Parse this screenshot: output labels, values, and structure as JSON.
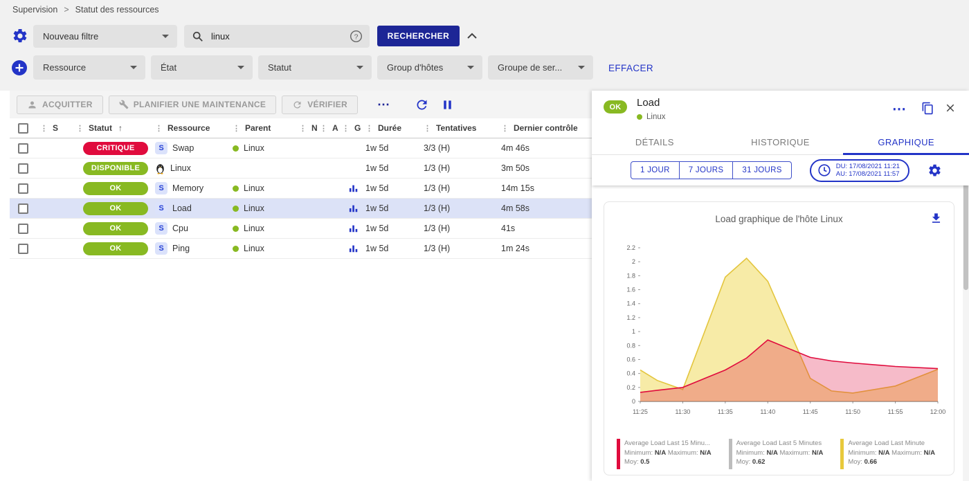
{
  "colors": {
    "accent": "#2334c7",
    "brand_dark": "#1d2696",
    "ok_green": "#88b922",
    "critical_red": "#e00b3d",
    "selected_row": "#dce2f7"
  },
  "breadcrumb": {
    "items": [
      "Supervision",
      "Statut des ressources"
    ],
    "separator": ">"
  },
  "filter_bar": {
    "saved_filter": "Nouveau filtre",
    "search_value": "linux",
    "search_button": "RECHERCHER",
    "criteria": [
      "Ressource",
      "État",
      "Statut",
      "Group d'hôtes",
      "Groupe de ser..."
    ],
    "clear_label": "EFFACER"
  },
  "toolbar": {
    "acknowledge": "ACQUITTER",
    "maintenance": "PLANIFIER UNE MAINTENANCE",
    "check": "VÉRIFIER",
    "more": "⋯"
  },
  "table": {
    "headers": [
      {
        "label": "S"
      },
      {
        "label": "Statut",
        "sorted": "asc"
      },
      {
        "label": "Ressource"
      },
      {
        "label": "Parent"
      },
      {
        "label": "N"
      },
      {
        "label": "A"
      },
      {
        "label": "G"
      },
      {
        "label": "Durée"
      },
      {
        "label": "Tentatives"
      },
      {
        "label": "Dernier contrôle"
      }
    ],
    "rows": [
      {
        "status": "CRITIQUE",
        "status_color": "#e00b3d",
        "kind": "service",
        "resource": "Swap",
        "parent": "Linux",
        "graph": false,
        "duration": "1w 5d",
        "tries": "3/3 (H)",
        "last_check": "4m 46s",
        "selected": false
      },
      {
        "status": "DISPONIBLE",
        "status_color": "#88b922",
        "kind": "host",
        "resource": "Linux",
        "parent": "",
        "graph": false,
        "duration": "1w 5d",
        "tries": "1/3 (H)",
        "last_check": "3m 50s",
        "selected": false
      },
      {
        "status": "OK",
        "status_color": "#88b922",
        "kind": "service",
        "resource": "Memory",
        "parent": "Linux",
        "graph": true,
        "duration": "1w 5d",
        "tries": "1/3 (H)",
        "last_check": "14m 15s",
        "selected": false
      },
      {
        "status": "OK",
        "status_color": "#88b922",
        "kind": "service",
        "resource": "Load",
        "parent": "Linux",
        "graph": true,
        "duration": "1w 5d",
        "tries": "1/3 (H)",
        "last_check": "4m 58s",
        "selected": true
      },
      {
        "status": "OK",
        "status_color": "#88b922",
        "kind": "service",
        "resource": "Cpu",
        "parent": "Linux",
        "graph": true,
        "duration": "1w 5d",
        "tries": "1/3 (H)",
        "last_check": "41s",
        "selected": false
      },
      {
        "status": "OK",
        "status_color": "#88b922",
        "kind": "service",
        "resource": "Ping",
        "parent": "Linux",
        "graph": true,
        "duration": "1w 5d",
        "tries": "1/3 (H)",
        "last_check": "1m 24s",
        "selected": false
      }
    ]
  },
  "panel": {
    "status": "OK",
    "title": "Load",
    "parent": "Linux",
    "more": "⋯",
    "tabs": [
      "DÉTAILS",
      "HISTORIQUE",
      "GRAPHIQUE"
    ],
    "active_tab": "GRAPHIQUE",
    "ranges": [
      "1 JOUR",
      "7 JOURS",
      "31 JOURS"
    ],
    "date_from": "DU: 17/08/2021 11:21",
    "date_to": "AU: 17/08/2021 11:57"
  },
  "chart_data": {
    "type": "area",
    "title": "Load graphique de l'hôte Linux",
    "ylim": [
      0,
      2.2
    ],
    "y_tick_step": 0.2,
    "x_ticks": [
      "11:25",
      "11:30",
      "11:35",
      "11:40",
      "11:45",
      "11:50",
      "11:55",
      "12:00"
    ],
    "x_tick_minutes": [
      0,
      5,
      10,
      15,
      20,
      25,
      30,
      35
    ],
    "x": [
      0,
      2,
      5,
      10,
      12.5,
      15,
      20,
      22.5,
      25,
      30,
      35
    ],
    "series": [
      {
        "name": "Average Load Last Minute",
        "color": "#e3c53d",
        "fill": "rgba(240,219,95,0.55)",
        "values": [
          0.45,
          0.3,
          0.17,
          1.78,
          2.05,
          1.72,
          0.33,
          0.15,
          0.12,
          0.22,
          0.46
        ],
        "min": "N/A",
        "max": "N/A",
        "avg": "0.66",
        "visible": true
      },
      {
        "name": "Average Load Last 5 Minutes",
        "color": "#bdbdbd",
        "fill": null,
        "values": null,
        "min": "N/A",
        "max": "N/A",
        "avg": "0.62",
        "visible": false
      },
      {
        "name": "Average Load Last 15 Minu...",
        "color": "#e00b3d",
        "fill": "rgba(224,11,61,0.28)",
        "values": [
          0.13,
          0.16,
          0.2,
          0.45,
          0.62,
          0.88,
          0.63,
          0.58,
          0.55,
          0.5,
          0.47
        ],
        "min": "N/A",
        "max": "N/A",
        "avg": "0.5",
        "visible": true
      }
    ],
    "legend": [
      {
        "name": "Average Load Last 15 Minu...",
        "color": "#e00b3d",
        "min": "N/A",
        "max": "N/A",
        "avg": "0.5"
      },
      {
        "name": "Average Load Last 5 Minutes",
        "color": "#bdbdbd",
        "min": "N/A",
        "max": "N/A",
        "avg": "0.62"
      },
      {
        "name": "Average Load Last Minute",
        "color": "#e8c93c",
        "min": "N/A",
        "max": "N/A",
        "avg": "0.66"
      }
    ],
    "legend_labels": {
      "min": "Minimum:",
      "max": "Maximum:",
      "avg": "Moy:"
    }
  }
}
